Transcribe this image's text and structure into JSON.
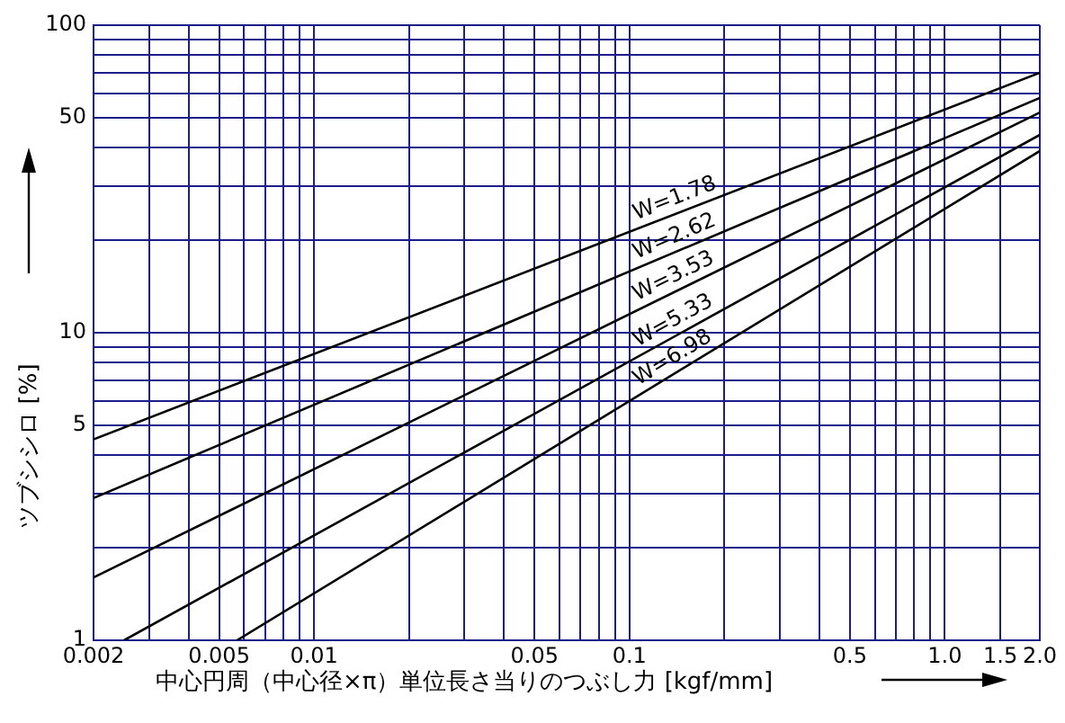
{
  "chart_data": {
    "type": "line",
    "xlabel": "中心円周（中心径×π）単位長さ当りのつぶし力 [kgf/mm]",
    "ylabel": "ツブシシロ [%]",
    "log": "xy",
    "grid": true,
    "legend": false,
    "marker": "none",
    "line_style": "solid",
    "xlim": [
      0.002,
      2
    ],
    "ylim": [
      1,
      100
    ],
    "xticks": [
      0.002,
      {
        "value": 0.003,
        "label": null
      },
      {
        "value": 0.004,
        "label": null
      },
      0.005,
      {
        "value": 0.006,
        "label": null
      },
      {
        "value": 0.007,
        "label": null
      },
      {
        "value": 0.008,
        "label": null
      },
      {
        "value": 0.009,
        "label": null
      },
      0.01,
      {
        "value": 0.02,
        "label": null
      },
      {
        "value": 0.03,
        "label": null
      },
      {
        "value": 0.04,
        "label": null
      },
      0.05,
      {
        "value": 0.06,
        "label": null
      },
      {
        "value": 0.07,
        "label": null
      },
      {
        "value": 0.08,
        "label": null
      },
      {
        "value": 0.09,
        "label": null
      },
      0.1,
      {
        "value": 0.2,
        "label": null
      },
      {
        "value": 0.3,
        "label": null
      },
      {
        "value": 0.4,
        "label": null
      },
      0.5,
      {
        "value": 0.6,
        "label": null
      },
      {
        "value": 0.7,
        "label": null
      },
      {
        "value": 0.8,
        "label": null
      },
      {
        "value": 0.9,
        "label": null
      },
      {
        "value": 1,
        "label": "1.0"
      },
      {
        "value": 1.5,
        "label": "1.5"
      },
      {
        "value": 2,
        "label": "2.0"
      }
    ],
    "yticks": [
      1,
      {
        "value": 2,
        "label": null
      },
      {
        "value": 3,
        "label": null
      },
      {
        "value": 4,
        "label": null
      },
      5,
      {
        "value": 6,
        "label": null
      },
      {
        "value": 7,
        "label": null
      },
      {
        "value": 8,
        "label": null
      },
      {
        "value": 9,
        "label": null
      },
      10,
      {
        "value": 20,
        "label": null
      },
      {
        "value": 30,
        "label": null
      },
      {
        "value": 40,
        "label": null
      },
      50,
      {
        "value": 60,
        "label": null
      },
      {
        "value": 70,
        "label": null
      },
      {
        "value": 80,
        "label": null
      },
      {
        "value": 90,
        "label": null
      },
      100
    ],
    "series": [
      {
        "name": "W=1.78",
        "color": "#000000",
        "x": [
          0.002,
          2
        ],
        "values": [
          4.5,
          70
        ]
      },
      {
        "name": "W=2.62",
        "color": "#000000",
        "x": [
          0.002,
          2
        ],
        "values": [
          2.9,
          58
        ]
      },
      {
        "name": "W=3.53",
        "color": "#000000",
        "x": [
          0.002,
          2
        ],
        "values": [
          1.6,
          52
        ]
      },
      {
        "name": "W=5.33",
        "color": "#000000",
        "x": [
          0.0025,
          2
        ],
        "values": [
          1,
          44
        ]
      },
      {
        "name": "W=6.98",
        "color": "#000000",
        "x": [
          0.0057,
          2
        ],
        "values": [
          1,
          39
        ]
      }
    ]
  }
}
